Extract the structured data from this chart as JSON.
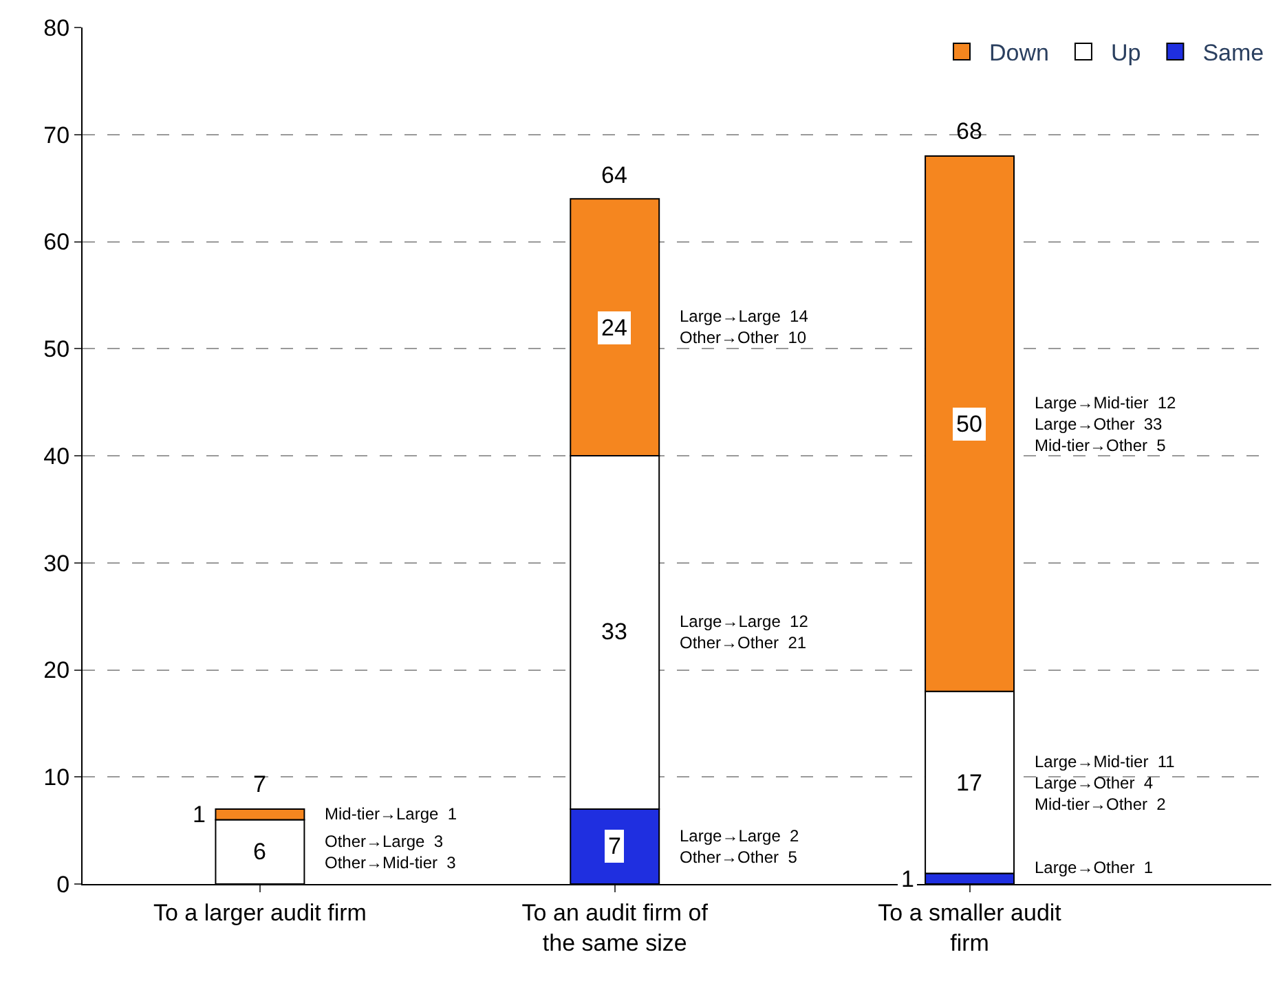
{
  "chart_data": {
    "type": "bar",
    "stacked": true,
    "categories": [
      "To a larger audit firm",
      "To an audit firm of the same size",
      "To a smaller audit firm"
    ],
    "series": [
      {
        "name": "Same",
        "color": "#1f2fe0",
        "values": [
          0,
          7,
          1
        ],
        "value_labels": [
          null,
          "7",
          "1"
        ]
      },
      {
        "name": "Up",
        "color": "#ffffff",
        "values": [
          6,
          33,
          17
        ],
        "value_labels": [
          "6",
          "33",
          "17"
        ]
      },
      {
        "name": "Down",
        "color": "#f5861f",
        "values": [
          1,
          24,
          50
        ],
        "value_labels": [
          "1",
          "24",
          "50"
        ]
      }
    ],
    "totals": [
      "7",
      "64",
      "68"
    ],
    "ylim": [
      0,
      80
    ],
    "yticks": [
      0,
      10,
      20,
      30,
      40,
      50,
      60,
      70,
      80
    ],
    "grid": "y",
    "legend": "top right",
    "annotations": [
      "Mid-tier→Large  1",
      "Other→Large  3\nOther→Mid-tier  3",
      "Large→Large  14\nOther→Other  10",
      "Large→Large  12\nOther→Other  21",
      "Large→Large  2\nOther→Other  5",
      "Large→Mid-tier  12\nLarge→Other  33\nMid-tier→Other  5",
      "Large→Mid-tier  11\nLarge→Other  4\nMid-tier→Other  2",
      "Large→Other  1"
    ]
  }
}
